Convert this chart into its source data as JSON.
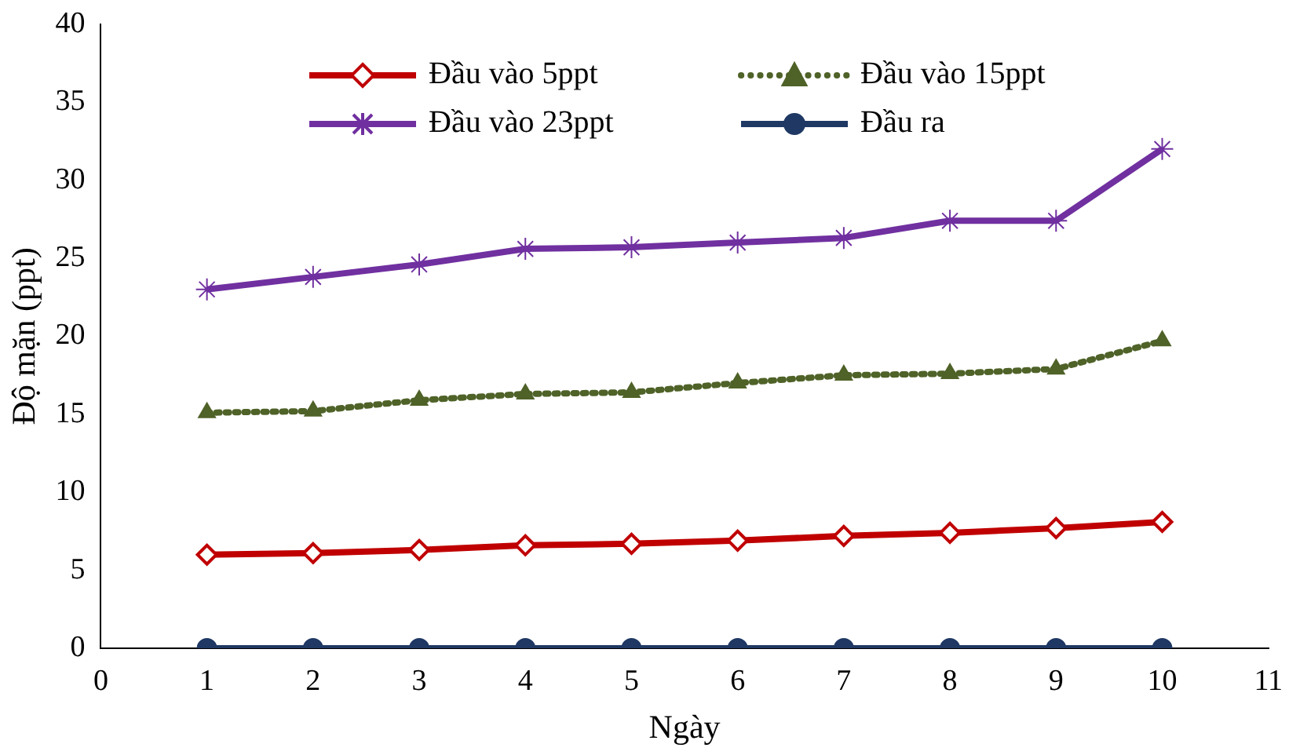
{
  "chart_data": {
    "type": "line",
    "xlabel": "Ngày",
    "ylabel": "Độ mặn (ppt)",
    "x": [
      1,
      2,
      3,
      4,
      5,
      6,
      7,
      8,
      9,
      10
    ],
    "xlim": [
      0,
      11
    ],
    "xticks": [
      0,
      1,
      2,
      3,
      4,
      5,
      6,
      7,
      8,
      9,
      10,
      11
    ],
    "ylim": [
      0,
      40
    ],
    "yticks": [
      0,
      5,
      10,
      15,
      20,
      25,
      30,
      35,
      40
    ],
    "grid": false,
    "legend": "top",
    "series": [
      {
        "name": "Đầu vào 5ppt",
        "color": "#c00000",
        "marker": "diamond",
        "line_style": "solid",
        "values": [
          6.0,
          6.1,
          6.3,
          6.6,
          6.7,
          6.9,
          7.2,
          7.4,
          7.7,
          8.1
        ]
      },
      {
        "name": "Đầu vào 15ppt",
        "color": "#4f6228",
        "marker": "triangle",
        "line_style": "dotted",
        "values": [
          15.1,
          15.2,
          15.9,
          16.3,
          16.4,
          17.0,
          17.5,
          17.6,
          17.9,
          19.7
        ]
      },
      {
        "name": "Đầu vào 23ppt",
        "color": "#7030a0",
        "marker": "cross",
        "line_style": "solid",
        "values": [
          23.0,
          23.8,
          24.6,
          25.6,
          25.7,
          26.0,
          26.3,
          27.4,
          27.4,
          32.0
        ]
      },
      {
        "name": "Đầu ra",
        "color": "#1f3864",
        "marker": "circle",
        "line_style": "solid",
        "values": [
          0,
          0,
          0,
          0,
          0,
          0,
          0,
          0,
          0,
          0
        ]
      }
    ]
  }
}
